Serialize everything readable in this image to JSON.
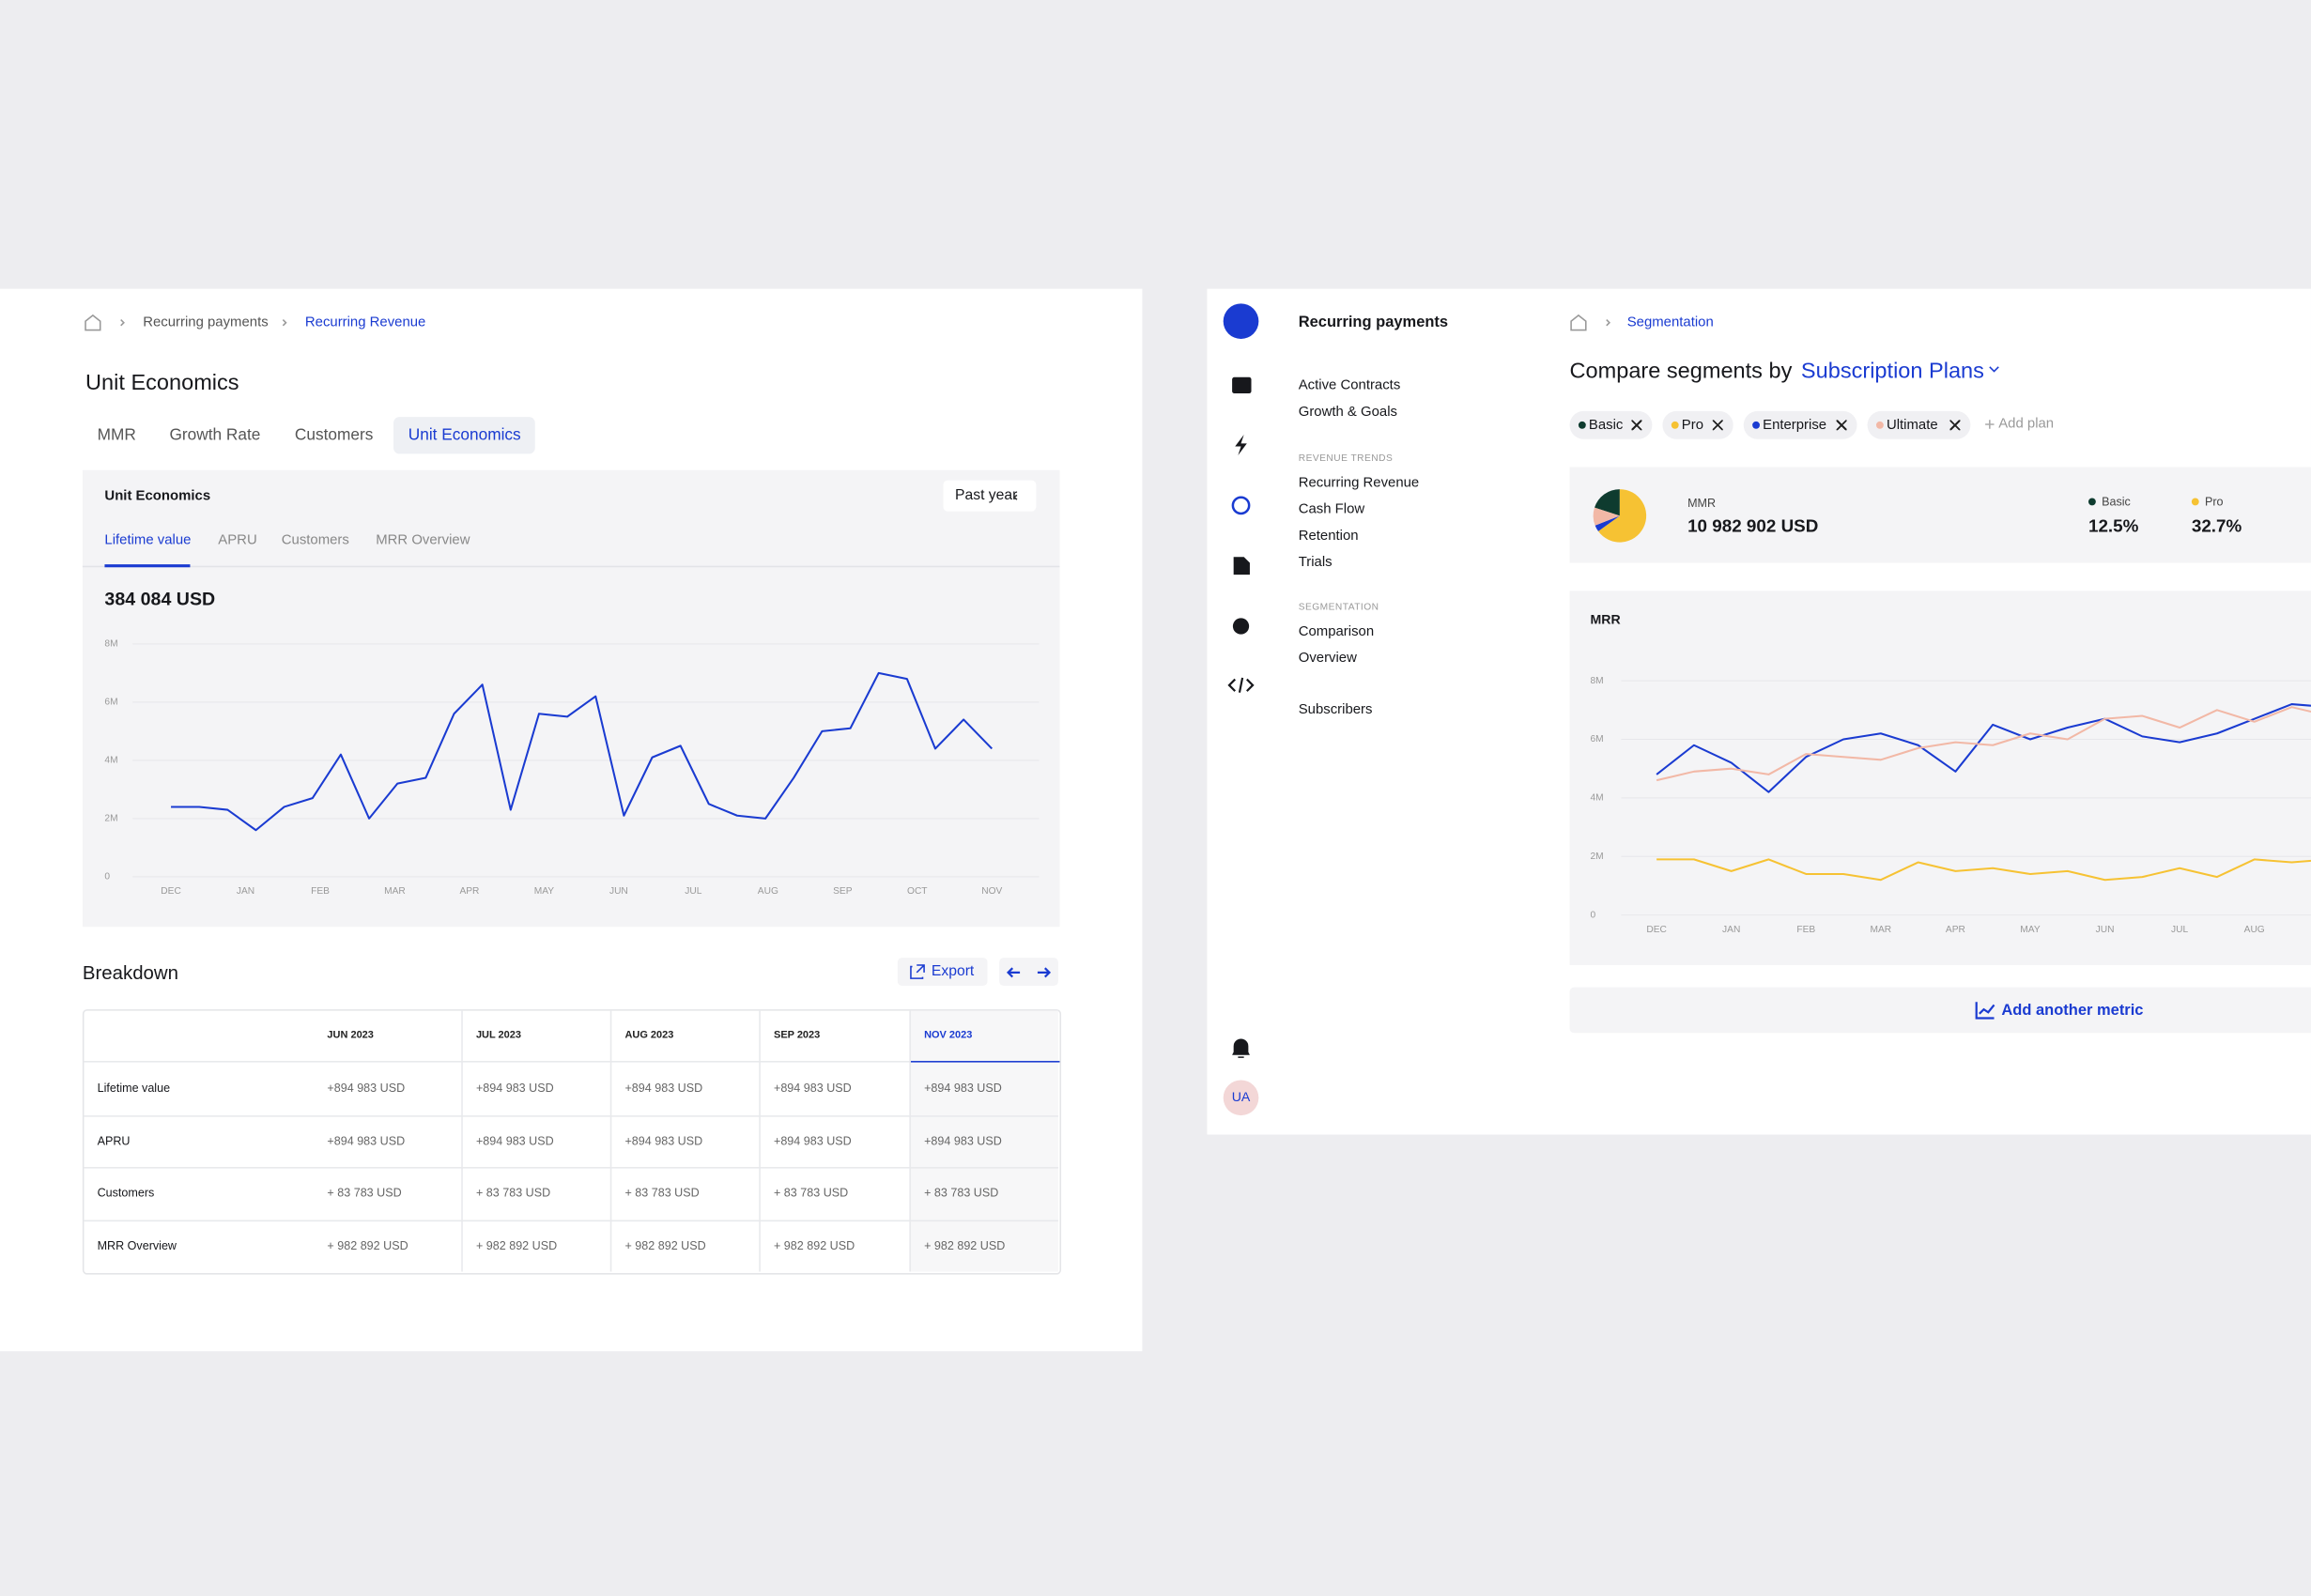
{
  "left": {
    "breadcrumb": [
      "Recurring payments",
      "Recurring Revenue"
    ],
    "title": "Unit Economics",
    "tabs": [
      "MMR",
      "Growth Rate",
      "Customers",
      "Unit Economics"
    ],
    "card": {
      "title": "Unit Economics",
      "period": "Past year",
      "subtabs": [
        "Lifetime value",
        "APRU",
        "Customers",
        "MRR Overview"
      ],
      "total": "384 084 USD"
    },
    "breakdown": {
      "title": "Breakdown",
      "export": "Export",
      "columns": [
        "JUN 2023",
        "JUL 2023",
        "AUG 2023",
        "SEP 2023",
        "NOV 2023"
      ],
      "rows": [
        [
          "Lifetime value",
          "+894 983 USD",
          "+894 983 USD",
          "+894 983 USD",
          "+894 983 USD",
          "+894 983 USD"
        ],
        [
          "APRU",
          "+894 983 USD",
          "+894 983 USD",
          "+894 983 USD",
          "+894 983 USD",
          "+894 983 USD"
        ],
        [
          "Customers",
          "+ 83 783 USD",
          "+ 83 783 USD",
          "+ 83 783 USD",
          "+ 83 783 USD",
          "+ 83 783 USD"
        ],
        [
          "MRR Overview",
          "+ 982 892 USD",
          "+ 982 892 USD",
          "+ 982 892 USD",
          "+ 982 892 USD",
          "+ 982 892 USD"
        ]
      ]
    }
  },
  "right": {
    "nav": {
      "title": "Recurring payments",
      "groups": [
        {
          "items": [
            "Active Contracts",
            "Growth & Goals"
          ]
        },
        {
          "label": "REVENUE TRENDS",
          "items": [
            "Recurring Revenue",
            "Cash Flow",
            "Retention",
            "Trials"
          ]
        },
        {
          "label": "SEGMENTATION",
          "items": [
            "Comparison",
            "Overview"
          ]
        },
        {
          "items": [
            "Subscribers"
          ]
        }
      ]
    },
    "avatar": "UA",
    "breadcrumb": [
      "Segmentation"
    ],
    "heading": "Compare segments by",
    "selector": "Subscription Plans",
    "chips": [
      {
        "name": "Basic",
        "color": "#0e3b2f"
      },
      {
        "name": "Pro",
        "color": "#f6c233"
      },
      {
        "name": "Enterprise",
        "color": "#1a3bd1"
      },
      {
        "name": "Ultimate",
        "color": "#f2b8a6"
      }
    ],
    "add_plan": "Add plan",
    "summary": {
      "label": "MMR",
      "value": "10 982 902 USD",
      "stats": [
        {
          "name": "Basic",
          "value": "12.5%",
          "color": "#0e3b2f"
        },
        {
          "name": "Pro",
          "value": "32.7%",
          "color": "#f6c233"
        }
      ]
    },
    "chart_title": "MRR",
    "add_metric": "Add another metric"
  },
  "chart_data": [
    {
      "type": "line",
      "xtick_labels": [
        "DEC",
        "JAN",
        "FEB",
        "MAR",
        "APR",
        "MAY",
        "JUN",
        "JUL",
        "AUG",
        "SEP",
        "OCT",
        "NOV"
      ],
      "series": [
        {
          "color": "#1a3bd1",
          "values": [
            2400000,
            2400000,
            2300000,
            1600000,
            2400000,
            2700000,
            4200000,
            2000000,
            3200000,
            3400000,
            5600000,
            6600000,
            2300000,
            5600000,
            5500000,
            6200000,
            2100000,
            4100000,
            4500000,
            2500000,
            2100000,
            2000000,
            3400000,
            5000000,
            5100000,
            7000000,
            6800000,
            4400000,
            5400000,
            4400000
          ]
        }
      ],
      "ylim": [
        0,
        8000000
      ],
      "yticks": [
        0,
        {
          "value": 2000000,
          "label": "2M"
        },
        {
          "value": 4000000,
          "label": "4M"
        },
        {
          "value": 6000000,
          "label": "6M"
        },
        {
          "value": 8000000,
          "label": "8M"
        }
      ],
      "grid": true
    },
    {
      "type": "line",
      "xtick_labels": [
        "DEC",
        "JAN",
        "FEB",
        "MAR",
        "APR",
        "MAY",
        "JUN",
        "JUL",
        "AUG"
      ],
      "series": [
        {
          "color": "#1a3bd1",
          "values": [
            4800000,
            5800000,
            5200000,
            4200000,
            5400000,
            6000000,
            6200000,
            5800000,
            4900000,
            6500000,
            6000000,
            6400000,
            6700000,
            6100000,
            5900000,
            6200000,
            6700000,
            7200000,
            7100000
          ]
        },
        {
          "color": "#f2b8a6",
          "values": [
            4600000,
            4900000,
            5000000,
            4800000,
            5500000,
            5400000,
            5300000,
            5700000,
            5900000,
            5800000,
            6200000,
            6000000,
            6700000,
            6800000,
            6400000,
            7000000,
            6600000,
            7100000,
            6800000
          ]
        },
        {
          "color": "#f6c233",
          "values": [
            1900000,
            1900000,
            1500000,
            1900000,
            1400000,
            1400000,
            1200000,
            1800000,
            1500000,
            1600000,
            1400000,
            1500000,
            1200000,
            1300000,
            1600000,
            1300000,
            1900000,
            1800000,
            1900000
          ]
        }
      ],
      "ylim": [
        0,
        8000000
      ],
      "yticks": [
        0,
        {
          "value": 2000000,
          "label": "2M"
        },
        {
          "value": 4000000,
          "label": "4M"
        },
        {
          "value": 6000000,
          "label": "6M"
        },
        {
          "value": 8000000,
          "label": "8M"
        }
      ],
      "grid": true
    },
    {
      "type": "pie",
      "values": [
        20,
        65,
        4,
        11
      ],
      "colors": [
        "#0e3b2f",
        "#f6c233",
        "#1a3bd1",
        "#f2b8a6"
      ]
    }
  ]
}
